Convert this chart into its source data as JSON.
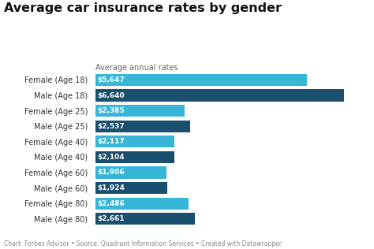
{
  "title": "Average car insurance rates by gender",
  "subtitle": "Average annual rates",
  "categories": [
    "Female (Age 18)",
    "Male (Age 18)",
    "Female (Age 25)",
    "Male (Age 25)",
    "Female (Age 40)",
    "Male (Age 40)",
    "Female (Age 60)",
    "Male (Age 60)",
    "Female (Age 80)",
    "Male (Age 80)"
  ],
  "values": [
    5647,
    6640,
    2385,
    2537,
    2117,
    2104,
    1906,
    1924,
    2486,
    2661
  ],
  "labels": [
    "$5,647",
    "$6,640",
    "$2,385",
    "$2,537",
    "$2,117",
    "$2,104",
    "$1,906",
    "$1,924",
    "$2,486",
    "$2,661"
  ],
  "colors": [
    "#38b6d8",
    "#1b4f6e",
    "#38b6d8",
    "#1b4f6e",
    "#38b6d8",
    "#1b4f6e",
    "#38b6d8",
    "#1b4f6e",
    "#38b6d8",
    "#1b4f6e"
  ],
  "footer": "Chart: Forbes Advisor • Source: Quadrant Information Services • Created with Datawrapper",
  "background_color": "#ffffff",
  "title_fontsize": 11.5,
  "subtitle_fontsize": 7,
  "label_fontsize": 6.5,
  "footer_fontsize": 5.5,
  "category_fontsize": 7,
  "xlim": [
    0,
    7200
  ]
}
